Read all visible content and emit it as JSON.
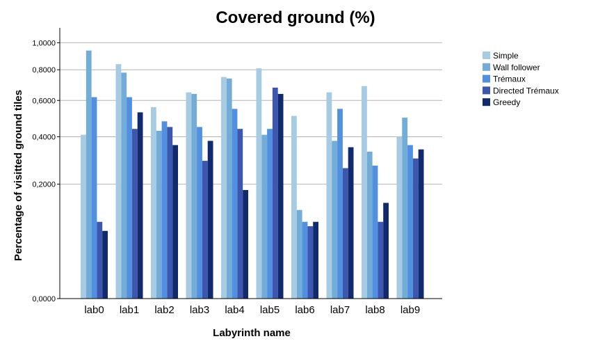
{
  "chart_data": {
    "type": "bar",
    "title": "Covered ground (%)",
    "xlabel": "Labyrinth name",
    "ylabel": "Percentage of visitted ground tiles",
    "categories": [
      "lab0",
      "lab1",
      "lab2",
      "lab3",
      "lab4",
      "lab5",
      "lab6",
      "lab7",
      "lab8",
      "lab9"
    ],
    "y_ticks": [
      {
        "value": 0.0,
        "label": "0,0000"
      },
      {
        "value": 0.2,
        "label": "0,2000"
      },
      {
        "value": 0.4,
        "label": "0,4000"
      },
      {
        "value": 0.6,
        "label": "0,6000"
      },
      {
        "value": 0.8,
        "label": "0,8000"
      },
      {
        "value": 1.0,
        "label": "1,0000"
      }
    ],
    "y_scale": "sqrt",
    "ylim": [
      0,
      1.12
    ],
    "grid": true,
    "legend_position": "right",
    "series": [
      {
        "name": "Simple",
        "color": "#a6cbe3",
        "values": [
          0.41,
          0.84,
          0.56,
          0.65,
          0.75,
          0.81,
          0.51,
          0.65,
          0.69,
          0.4
        ]
      },
      {
        "name": "Wall follower",
        "color": "#73acd6",
        "values": [
          0.94,
          0.78,
          0.43,
          0.64,
          0.74,
          0.41,
          0.12,
          0.38,
          0.33,
          0.5
        ]
      },
      {
        "name": "Trémaux",
        "color": "#5190e0",
        "values": [
          0.62,
          0.62,
          0.48,
          0.45,
          0.55,
          0.44,
          0.09,
          0.55,
          0.27,
          0.36
        ]
      },
      {
        "name": "Directed Trémaux",
        "color": "#3d56ae",
        "values": [
          0.09,
          0.44,
          0.45,
          0.29,
          0.44,
          0.68,
          0.08,
          0.26,
          0.09,
          0.3
        ]
      },
      {
        "name": "Greedy",
        "color": "#112a6e",
        "values": [
          0.07,
          0.53,
          0.36,
          0.38,
          0.18,
          0.64,
          0.09,
          0.35,
          0.14,
          0.34
        ]
      }
    ]
  }
}
